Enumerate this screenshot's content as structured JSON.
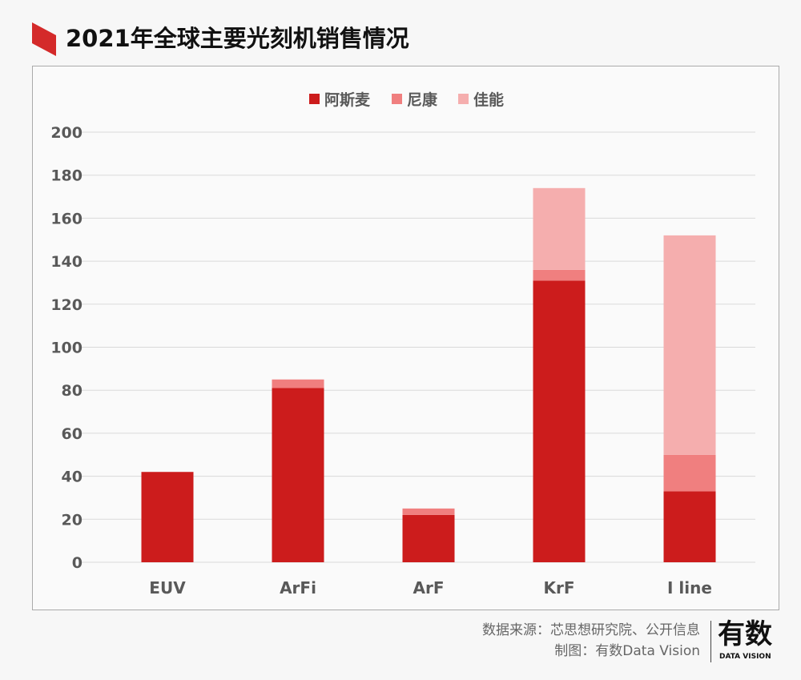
{
  "title": "2021年全球主要光刻机销售情况",
  "footer": {
    "source": "数据来源：芯思想研究院、公开信息",
    "credit": "制图：有数Data Vision",
    "logo_main": "有数",
    "logo_sub": "DATA VISION"
  },
  "chart_data": {
    "type": "bar",
    "stacked": true,
    "title": "2021年全球主要光刻机销售情况",
    "categories": [
      "EUV",
      "ArFi",
      "ArF",
      "KrF",
      "I line"
    ],
    "series": [
      {
        "name": "阿斯麦",
        "color": "#cc1c1c",
        "values": [
          42,
          81,
          22,
          131,
          33
        ]
      },
      {
        "name": "尼康",
        "color": "#f07f7f",
        "values": [
          0,
          4,
          3,
          5,
          17
        ]
      },
      {
        "name": "佳能",
        "color": "#f5aeae",
        "values": [
          0,
          0,
          0,
          38,
          102
        ]
      }
    ],
    "ylim": [
      0,
      200
    ],
    "yticks": [
      0,
      20,
      40,
      60,
      80,
      100,
      120,
      140,
      160,
      180,
      200
    ],
    "grid": true,
    "legend": "top-center",
    "xlabel": "",
    "ylabel": ""
  }
}
